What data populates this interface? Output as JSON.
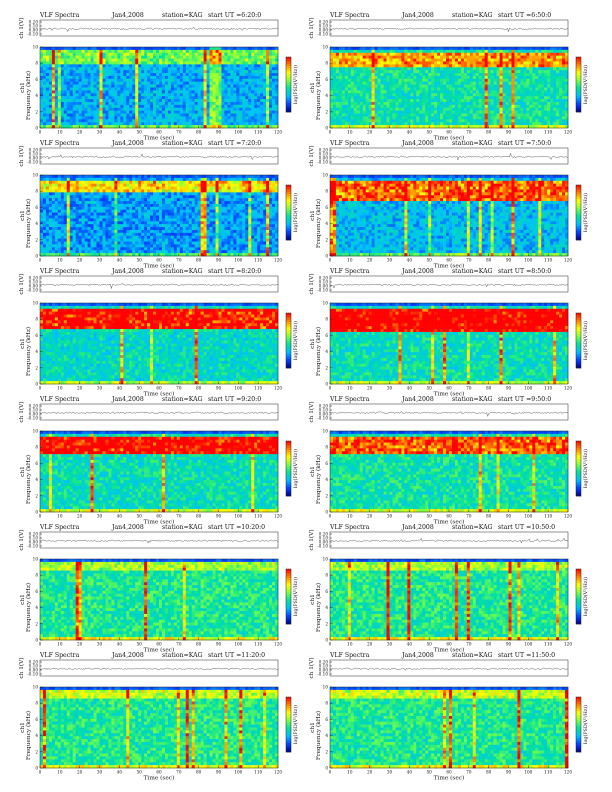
{
  "header": {
    "product": "VLF Spectra",
    "date": "Jan4,2008",
    "station": "station=KAG"
  },
  "common": {
    "trace_label": "ch 1(V)",
    "freq_label": "Frequency (kHz)",
    "channel_label": "ch1",
    "colorbar_label": "log(PSD(V²/Hz))",
    "time_label": "Time (sec)"
  },
  "colors": {
    "background": "#2a6fd6",
    "scale": [
      "#000080",
      "#0040ff",
      "#00c0ff",
      "#00e0a0",
      "#7cff40",
      "#ffff00",
      "#ff8000",
      "#ff0000"
    ]
  },
  "chart_data": [
    {
      "type": "heatmap",
      "start_ut": "start UT =6:20:0",
      "level": 0.28,
      "band_low_kHz": 8.0,
      "band_high_kHz": 9.6,
      "band_strength": 0.35,
      "spikes": 0.8,
      "gap_sec": [
        86,
        91
      ],
      "x": [
        0,
        10,
        20,
        30,
        40,
        50,
        60,
        70,
        80,
        90,
        100,
        110,
        120
      ],
      "y": [
        0,
        2,
        4,
        6,
        8,
        10
      ],
      "trace_ticks": [
        "0.20",
        "0.10",
        "0.00",
        "-0.10"
      ],
      "xlim": [
        0,
        120
      ],
      "ylim": [
        0,
        10
      ]
    },
    {
      "type": "heatmap",
      "start_ut": "start UT =6:50:0",
      "level": 0.42,
      "band_low_kHz": 7.6,
      "band_high_kHz": 9.4,
      "band_strength": 0.5,
      "spikes": 0.5,
      "gap_sec": null,
      "x": [
        0,
        10,
        20,
        30,
        40,
        50,
        60,
        70,
        80,
        90,
        100,
        110,
        120
      ],
      "y": [
        0,
        2,
        4,
        6,
        8,
        10
      ],
      "trace_ticks": [
        "0.20",
        "0.10",
        "0.00",
        "-0.10"
      ],
      "xlim": [
        0,
        120
      ],
      "ylim": [
        0,
        10
      ]
    },
    {
      "type": "heatmap",
      "start_ut": "start UT =7:20:0",
      "level": 0.25,
      "band_low_kHz": 8.0,
      "band_high_kHz": 9.4,
      "band_strength": 0.6,
      "spikes": 0.4,
      "gap_sec": null,
      "x": [
        0,
        10,
        20,
        30,
        40,
        50,
        60,
        70,
        80,
        90,
        100,
        110,
        120
      ],
      "y": [
        0,
        2,
        4,
        6,
        8,
        10
      ],
      "trace_ticks": [
        "0.20",
        "0.10",
        "0.00",
        "-0.10"
      ],
      "xlim": [
        0,
        120
      ],
      "ylim": [
        0,
        10
      ]
    },
    {
      "type": "heatmap",
      "start_ut": "start UT =7:50:0",
      "level": 0.3,
      "band_low_kHz": 6.8,
      "band_high_kHz": 9.2,
      "band_strength": 0.75,
      "spikes": 0.55,
      "gap_sec": null,
      "x": [
        0,
        10,
        20,
        30,
        40,
        50,
        60,
        70,
        80,
        90,
        100,
        110,
        120
      ],
      "y": [
        0,
        2,
        4,
        6,
        8,
        10
      ],
      "trace_ticks": [
        "0.20",
        "0.10",
        "0.00",
        "-0.10"
      ],
      "xlim": [
        0,
        120
      ],
      "ylim": [
        0,
        10
      ]
    },
    {
      "type": "heatmap",
      "start_ut": "start UT =8:20:0",
      "level": 0.38,
      "band_low_kHz": 6.8,
      "band_high_kHz": 9.2,
      "band_strength": 0.8,
      "spikes": 0.4,
      "gap_sec": null,
      "x": [
        0,
        10,
        20,
        30,
        40,
        50,
        60,
        70,
        80,
        90,
        100,
        110,
        120
      ],
      "y": [
        0,
        2,
        4,
        6,
        8,
        10
      ],
      "trace_ticks": [
        "0.20",
        "0.10",
        "0.00",
        "-0.10"
      ],
      "xlim": [
        0,
        120
      ],
      "ylim": [
        0,
        10
      ]
    },
    {
      "type": "heatmap",
      "start_ut": "start UT =8:50:0",
      "level": 0.4,
      "band_low_kHz": 6.6,
      "band_high_kHz": 9.2,
      "band_strength": 0.85,
      "spikes": 0.45,
      "gap_sec": null,
      "x": [
        0,
        10,
        20,
        30,
        40,
        50,
        60,
        70,
        80,
        90,
        100,
        110,
        120
      ],
      "y": [
        0,
        2,
        4,
        6,
        8,
        10
      ],
      "trace_ticks": [
        "0.20",
        "0.10",
        "0.00",
        "-0.10"
      ],
      "xlim": [
        0,
        120
      ],
      "ylim": [
        0,
        10
      ]
    },
    {
      "type": "heatmap",
      "start_ut": "start UT =9:20:0",
      "level": 0.4,
      "band_low_kHz": 7.0,
      "band_high_kHz": 9.2,
      "band_strength": 0.8,
      "spikes": 0.5,
      "gap_sec": null,
      "x": [
        0,
        10,
        20,
        30,
        40,
        50,
        60,
        70,
        80,
        90,
        100,
        110,
        120
      ],
      "y": [
        0,
        2,
        4,
        6,
        8,
        10
      ],
      "trace_ticks": [
        "0.20",
        "0.10",
        "0.00",
        "-0.10"
      ],
      "xlim": [
        0,
        120
      ],
      "ylim": [
        0,
        10
      ]
    },
    {
      "type": "heatmap",
      "start_ut": "start UT =9:50:0",
      "level": 0.42,
      "band_low_kHz": 7.2,
      "band_high_kHz": 9.2,
      "band_strength": 0.6,
      "spikes": 0.45,
      "gap_sec": null,
      "x": [
        0,
        10,
        20,
        30,
        40,
        50,
        60,
        70,
        80,
        90,
        100,
        110,
        120
      ],
      "y": [
        0,
        2,
        4,
        6,
        8,
        10
      ],
      "trace_ticks": [
        "0.20",
        "0.10",
        "0.00",
        "-0.10"
      ],
      "xlim": [
        0,
        120
      ],
      "ylim": [
        0,
        10
      ]
    },
    {
      "type": "heatmap",
      "start_ut": "start UT =10:20:0",
      "level": 0.45,
      "band_low_kHz": 8.6,
      "band_high_kHz": 9.6,
      "band_strength": 0.2,
      "spikes": 0.5,
      "gap_sec": null,
      "x": [
        0,
        10,
        20,
        30,
        40,
        50,
        60,
        70,
        80,
        90,
        100,
        110,
        120
      ],
      "y": [
        0,
        2,
        4,
        6,
        8,
        10
      ],
      "trace_ticks": [
        "0.20",
        "0.10",
        "0.00",
        "-0.10"
      ],
      "xlim": [
        0,
        120
      ],
      "ylim": [
        0,
        10
      ]
    },
    {
      "type": "heatmap",
      "start_ut": "start UT =10:50:0",
      "level": 0.45,
      "band_low_kHz": 8.6,
      "band_high_kHz": 9.6,
      "band_strength": 0.2,
      "spikes": 0.5,
      "gap_sec": null,
      "x": [
        0,
        10,
        20,
        30,
        40,
        50,
        60,
        70,
        80,
        90,
        100,
        110,
        120
      ],
      "y": [
        0,
        2,
        4,
        6,
        8,
        10
      ],
      "trace_ticks": [
        "0.20",
        "0.10",
        "0.00",
        "-0.10"
      ],
      "xlim": [
        0,
        120
      ],
      "ylim": [
        0,
        10
      ]
    },
    {
      "type": "heatmap",
      "start_ut": "start UT =11:20:0",
      "level": 0.45,
      "band_low_kHz": 8.6,
      "band_high_kHz": 9.6,
      "band_strength": 0.25,
      "spikes": 0.6,
      "gap_sec": null,
      "x": [
        0,
        10,
        20,
        30,
        40,
        50,
        60,
        70,
        80,
        90,
        100,
        110,
        120
      ],
      "y": [
        0,
        2,
        4,
        6,
        8,
        10
      ],
      "trace_ticks": [
        "0.20",
        "0.10",
        "0.00",
        "-0.10"
      ],
      "xlim": [
        0,
        120
      ],
      "ylim": [
        0,
        10
      ]
    },
    {
      "type": "heatmap",
      "start_ut": "start UT =11:50:0",
      "level": 0.45,
      "band_low_kHz": 8.6,
      "band_high_kHz": 9.6,
      "band_strength": 0.25,
      "spikes": 0.6,
      "gap_sec": null,
      "x": [
        0,
        10,
        20,
        30,
        40,
        50,
        60,
        70,
        80,
        90,
        100,
        110,
        120
      ],
      "y": [
        0,
        2,
        4,
        6,
        8,
        10
      ],
      "trace_ticks": [
        "0.20",
        "0.10",
        "0.00",
        "-0.10"
      ],
      "xlim": [
        0,
        120
      ],
      "ylim": [
        0,
        10
      ]
    }
  ]
}
